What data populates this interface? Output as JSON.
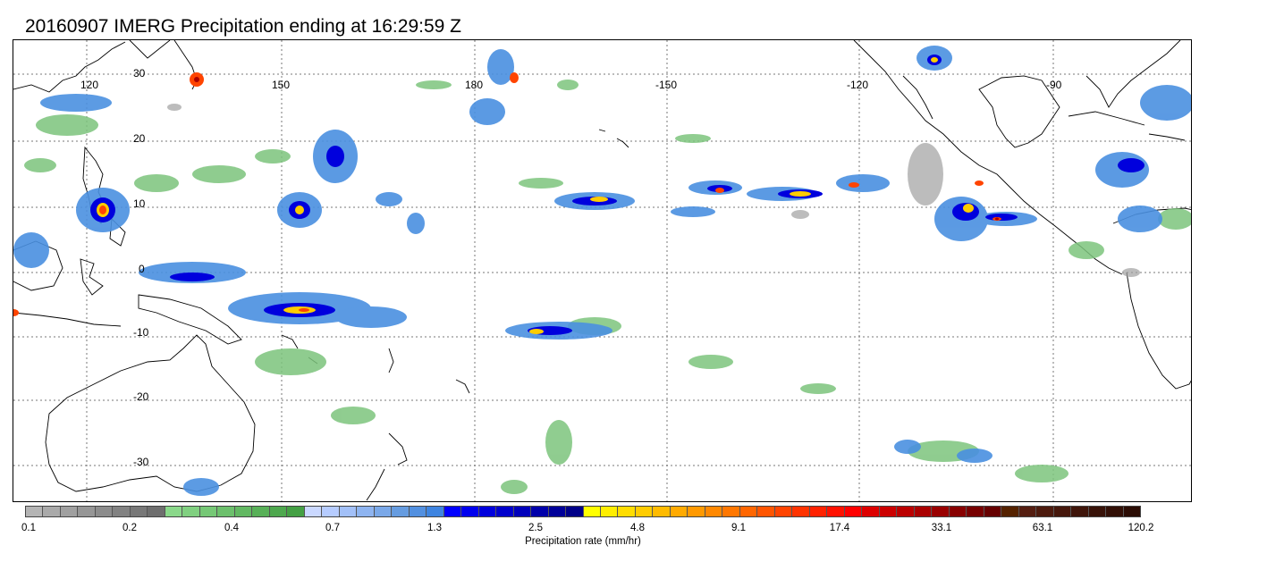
{
  "title": "20160907 IMERG Precipitation ending at 16:29:59 Z",
  "map": {
    "region": "Tropical Pacific Ocean",
    "lon_labels": [
      "120",
      "150",
      "180",
      "-150",
      "-120",
      "-90"
    ],
    "lat_labels": [
      "30",
      "20",
      "10",
      "0",
      "-10",
      "-20",
      "-30"
    ],
    "gridlines": "dotted",
    "coastline_color": "#000000"
  },
  "colorbar": {
    "label": "Precipitation rate (mm/hr)",
    "ticks": [
      "0.1",
      "0.2",
      "0.4",
      "0.7",
      "1.3",
      "2.5",
      "4.8",
      "9.1",
      "17.4",
      "33.1",
      "63.1",
      "120.2"
    ],
    "colors": [
      "#b4b4b4",
      "#aaaaaa",
      "#a0a0a0",
      "#969696",
      "#8c8c8c",
      "#828282",
      "#787878",
      "#6e6e6e",
      "#8ad88a",
      "#80d080",
      "#76c876",
      "#6cc06c",
      "#62b862",
      "#58b058",
      "#4ea84e",
      "#44a044",
      "#cad8ff",
      "#b6ccff",
      "#a2c0f8",
      "#8eb4f0",
      "#7aa8e8",
      "#669ce0",
      "#5290e0",
      "#3e84e0",
      "#0000ff",
      "#0000ee",
      "#0000dd",
      "#0000cc",
      "#0000bb",
      "#0000aa",
      "#000099",
      "#000088",
      "#ffff00",
      "#ffee00",
      "#ffdd00",
      "#ffcc00",
      "#ffbb00",
      "#ffaa00",
      "#ff9900",
      "#ff8800",
      "#ff7700",
      "#ff6600",
      "#ff5500",
      "#ff4400",
      "#ff3300",
      "#ff2200",
      "#ff1100",
      "#ff0000",
      "#dd0000",
      "#cc0000",
      "#bb0000",
      "#aa0000",
      "#990000",
      "#880000",
      "#770000",
      "#660000",
      "#552200",
      "#551e11",
      "#4d1b0e",
      "#46180c",
      "#3f150a",
      "#381208",
      "#320f06",
      "#2b0c04"
    ]
  },
  "precip_colors": {
    "light": "#7cc47c",
    "gray": "#a0a0a0",
    "moderate": "#4a90e0",
    "heavy": "#0000dd",
    "intense": "#ffcc00",
    "extreme": "#ff4400",
    "max": "#aa0000"
  }
}
